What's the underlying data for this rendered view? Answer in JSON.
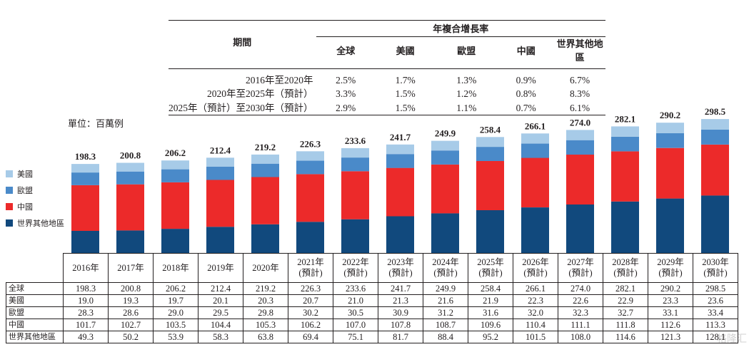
{
  "cagr_table": {
    "period_header": "期間",
    "group_header": "年複合增長率",
    "column_headers": [
      "全球",
      "美國",
      "歐盟",
      "中國",
      "世界其他地區"
    ],
    "rows": [
      {
        "period": "2016年至2020年",
        "values": [
          "2.5%",
          "1.7%",
          "1.3%",
          "0.9%",
          "6.7%"
        ]
      },
      {
        "period": "2020年至2025年（預計）",
        "values": [
          "3.3%",
          "1.5%",
          "1.2%",
          "0.8%",
          "8.3%"
        ]
      },
      {
        "period": "2025年（預計）至2030年（預計）",
        "values": [
          "2.9%",
          "1.5%",
          "1.1%",
          "0.7%",
          "6.1%"
        ]
      }
    ]
  },
  "unit_label": "單位：百萬例",
  "legend": [
    {
      "label": "美國",
      "color": "#a7cbe8"
    },
    {
      "label": "歐盟",
      "color": "#4a8ac9"
    },
    {
      "label": "中國",
      "color": "#ec2a2a"
    },
    {
      "label": "世界其他地區",
      "color": "#11497d"
    }
  ],
  "chart_data": {
    "type": "bar",
    "stacked": true,
    "title": "",
    "categories": [
      "2016年",
      "2017年",
      "2018年",
      "2019年",
      "2020年",
      "2021年(預計)",
      "2022年(預計)",
      "2023年(預計)",
      "2024年(預計)",
      "2025年(預計)",
      "2026年(預計)",
      "2027年(預計)",
      "2028年(預計)",
      "2029年(預計)",
      "2030年(預計)"
    ],
    "category_lines": [
      [
        "2016年"
      ],
      [
        "2017年"
      ],
      [
        "2018年"
      ],
      [
        "2019年"
      ],
      [
        "2020年"
      ],
      [
        "2021年",
        "(預計)"
      ],
      [
        "2022年",
        "(預計)"
      ],
      [
        "2023年",
        "(預計)"
      ],
      [
        "2024年",
        "(預計)"
      ],
      [
        "2025年",
        "(預計)"
      ],
      [
        "2026年",
        "(預計)"
      ],
      [
        "2027年",
        "(預計)"
      ],
      [
        "2028年",
        "(預計)"
      ],
      [
        "2029年",
        "(預計)"
      ],
      [
        "2030年",
        "(預計)"
      ]
    ],
    "totals": [
      "198.3",
      "200.8",
      "206.2",
      "212.4",
      "219.2",
      "226.3",
      "233.6",
      "241.7",
      "249.9",
      "258.4",
      "266.1",
      "274.0",
      "282.1",
      "290.2",
      "298.5"
    ],
    "series": [
      {
        "name": "世界其他地區",
        "values": [
          "49.3",
          "50.2",
          "53.9",
          "58.3",
          "63.8",
          "69.4",
          "75.1",
          "81.7",
          "88.4",
          "95.2",
          "101.5",
          "108.0",
          "114.6",
          "121.3",
          "128.1"
        ]
      },
      {
        "name": "中國",
        "values": [
          "101.7",
          "102.7",
          "103.5",
          "104.4",
          "105.3",
          "106.2",
          "107.0",
          "107.8",
          "108.7",
          "109.6",
          "110.4",
          "111.1",
          "111.8",
          "112.6",
          "113.3"
        ]
      },
      {
        "name": "歐盟",
        "values": [
          "28.3",
          "28.6",
          "29.0",
          "29.5",
          "29.8",
          "30.2",
          "30.5",
          "30.9",
          "31.2",
          "31.6",
          "32.0",
          "32.3",
          "32.7",
          "33.1",
          "33.4"
        ]
      },
      {
        "name": "美國",
        "values": [
          "19.0",
          "19.3",
          "19.7",
          "20.1",
          "20.3",
          "20.7",
          "21.0",
          "21.3",
          "21.6",
          "21.9",
          "22.3",
          "22.6",
          "22.9",
          "23.3",
          "23.6"
        ]
      }
    ],
    "table_row_order": [
      {
        "label": "全球",
        "key": "totals"
      },
      {
        "label": "美國",
        "key": "美國"
      },
      {
        "label": "歐盟",
        "key": "歐盟"
      },
      {
        "label": "中國",
        "key": "中國"
      },
      {
        "label": "世界其他地區",
        "key": "世界其他地區"
      }
    ],
    "ylim": [
      0,
      320
    ],
    "xlabel": "",
    "ylabel": ""
  },
  "watermark": "格隆汇"
}
